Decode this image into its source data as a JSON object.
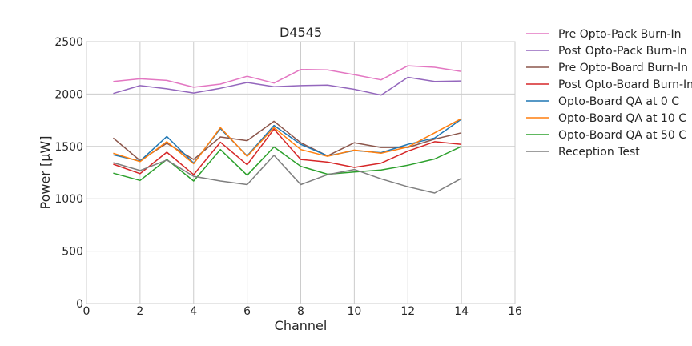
{
  "chart_data": {
    "type": "line",
    "title": "D4545",
    "xlabel": "Channel",
    "ylabel": "Power [μW]",
    "xlim": [
      0,
      16
    ],
    "ylim": [
      0,
      2500
    ],
    "xticks": [
      0,
      2,
      4,
      6,
      8,
      10,
      12,
      14,
      16
    ],
    "yticks": [
      0,
      500,
      1000,
      1500,
      2000,
      2500
    ],
    "grid": true,
    "legend_position": "outside-right-top",
    "x": [
      1,
      2,
      3,
      4,
      5,
      6,
      7,
      8,
      9,
      10,
      11,
      12,
      13,
      14
    ],
    "series": [
      {
        "name": "Pre Opto-Pack Burn-In",
        "color": "#e377c2",
        "values": [
          2120,
          2145,
          2130,
          2065,
          2095,
          2170,
          2105,
          2235,
          2230,
          2185,
          2135,
          2270,
          2255,
          2215
        ]
      },
      {
        "name": "Post Opto-Pack Burn-In",
        "color": "#9467bd",
        "values": [
          2005,
          2080,
          2050,
          2010,
          2055,
          2110,
          2070,
          2080,
          2085,
          2045,
          1990,
          2160,
          2120,
          2125
        ]
      },
      {
        "name": "Pre Opto-Board Burn-In",
        "color": "#8c564b",
        "values": [
          1580,
          1365,
          1530,
          1375,
          1590,
          1555,
          1740,
          1535,
          1410,
          1535,
          1490,
          1490,
          1570,
          1630
        ]
      },
      {
        "name": "Post Opto-Board Burn-In",
        "color": "#d62728",
        "values": [
          1330,
          1240,
          1445,
          1230,
          1540,
          1325,
          1665,
          1375,
          1350,
          1300,
          1340,
          1455,
          1545,
          1520
        ]
      },
      {
        "name": "Opto-Board QA at 0 C",
        "color": "#1f77b4",
        "values": [
          1420,
          1360,
          1595,
          1340,
          1670,
          1410,
          1700,
          1520,
          1410,
          1460,
          1440,
          1520,
          1580,
          1760
        ]
      },
      {
        "name": "Opto-Board QA at 10 C",
        "color": "#ff7f0e",
        "values": [
          1435,
          1355,
          1545,
          1335,
          1680,
          1405,
          1680,
          1470,
          1405,
          1465,
          1435,
          1495,
          1630,
          1765
        ]
      },
      {
        "name": "Opto-Board QA at 50 C",
        "color": "#2ca02c",
        "values": [
          1245,
          1175,
          1375,
          1170,
          1470,
          1225,
          1495,
          1310,
          1235,
          1255,
          1275,
          1320,
          1380,
          1500
        ]
      },
      {
        "name": "Reception Test",
        "color": "#7f7f7f",
        "values": [
          1345,
          1270,
          1370,
          1215,
          1170,
          1135,
          1415,
          1135,
          1230,
          1280,
          1190,
          1115,
          1055,
          1195
        ]
      }
    ]
  }
}
